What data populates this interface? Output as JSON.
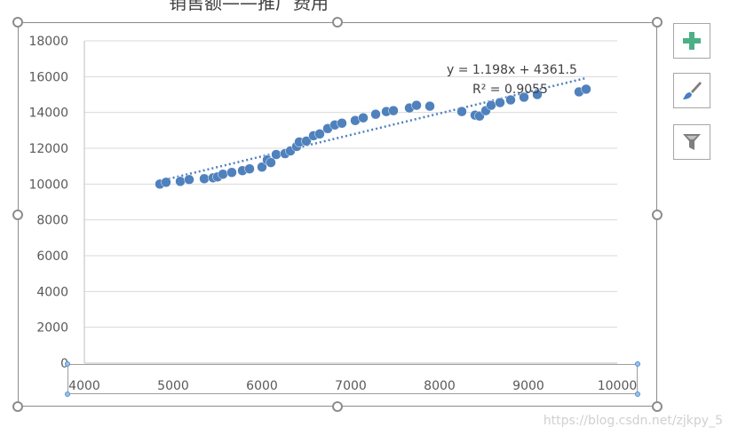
{
  "chart_data": {
    "type": "scatter",
    "title": "销售额——推广费用",
    "x": [
      4850,
      4920,
      5080,
      5180,
      5350,
      5450,
      5500,
      5560,
      5660,
      5780,
      5860,
      6000,
      6060,
      6100,
      6160,
      6260,
      6320,
      6390,
      6420,
      6500,
      6580,
      6650,
      6740,
      6820,
      6900,
      7050,
      7140,
      7280,
      7400,
      7480,
      7660,
      7740,
      7890,
      8250,
      8400,
      8450,
      8520,
      8580,
      8680,
      8800,
      8950,
      9100,
      9570,
      9650
    ],
    "y": [
      10000,
      10100,
      10150,
      10250,
      10300,
      10350,
      10400,
      10550,
      10650,
      10750,
      10850,
      10950,
      11350,
      11200,
      11650,
      11700,
      11850,
      12100,
      12350,
      12400,
      12700,
      12800,
      13100,
      13300,
      13400,
      13550,
      13700,
      13900,
      14050,
      14100,
      14250,
      14400,
      14350,
      14050,
      13850,
      13800,
      14100,
      14400,
      14550,
      14700,
      14850,
      15000,
      15150,
      15300
    ],
    "xlim": [
      4000,
      10000
    ],
    "ylim": [
      0,
      18000
    ],
    "x_ticks": [
      "4000",
      "5000",
      "6000",
      "7000",
      "8000",
      "9000",
      "10000"
    ],
    "y_ticks": [
      "0",
      "2000",
      "4000",
      "6000",
      "8000",
      "10000",
      "12000",
      "14000",
      "16000",
      "18000"
    ],
    "trendline": {
      "slope": 1.198,
      "intercept": 4361.5,
      "x_range": [
        4850,
        9650
      ],
      "equation": "y = 1.198x + 4361.5",
      "r2": "R² = 0.9055"
    },
    "grid": true,
    "marker_color": "#4f81bd",
    "trend_color": "#4f81bd"
  },
  "buttons": {
    "add_elements": "plus-icon",
    "styles": "brush-icon",
    "filters": "filter-icon"
  },
  "colors": {
    "plus": "#4caf86",
    "grid": "#d9d9d9",
    "axis": "#bfbfbf",
    "text": "#595959"
  },
  "watermark": "https://blog.csdn.net/zjkpy_5"
}
